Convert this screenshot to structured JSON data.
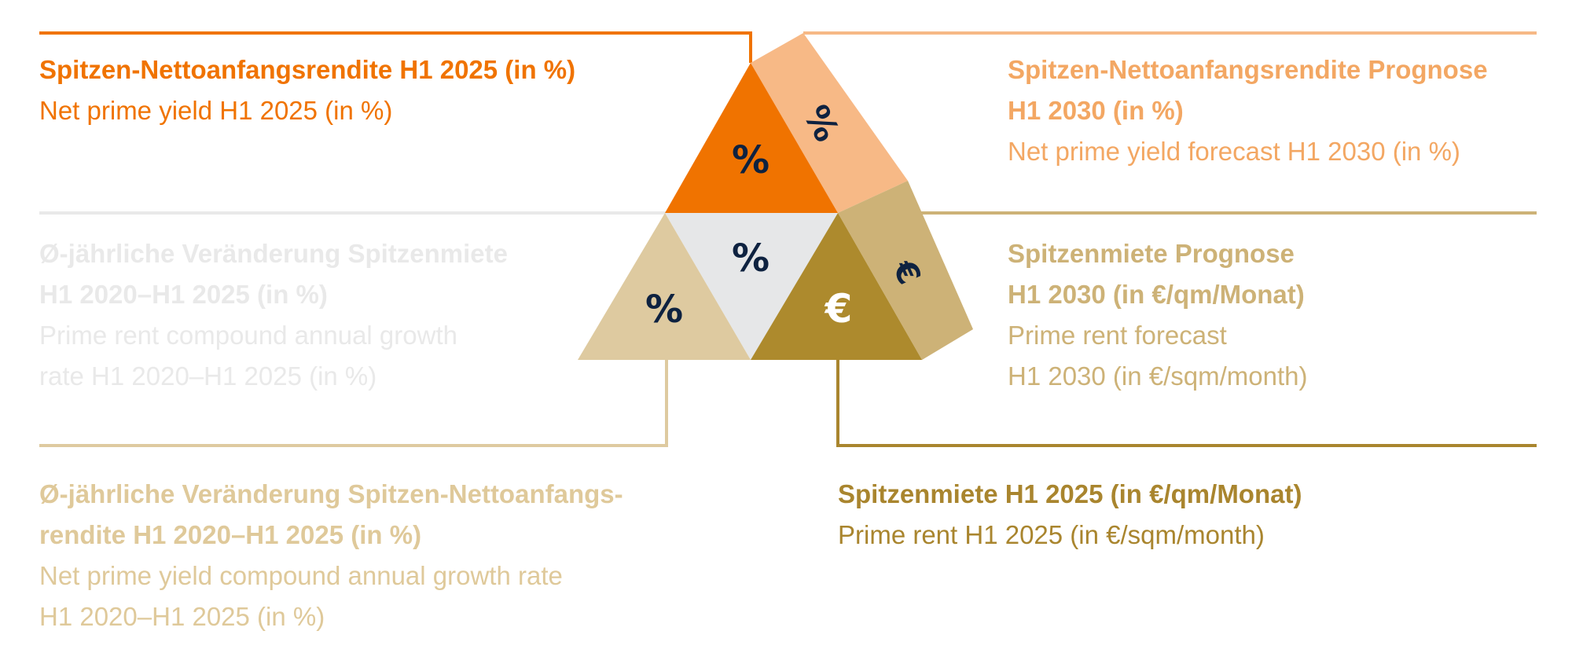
{
  "colors": {
    "orange": "#f07300",
    "peach": "#f7b986",
    "light_gold": "#decaa0",
    "grey": "#e6e7e8",
    "gold": "#ad8a2d",
    "gold_side": "#cdb277",
    "dark_gold_line": "#a9852e",
    "navy": "#0e2240",
    "faded_text": "#e9e9e9",
    "pale_gold_text": "#dfc99a",
    "light_gold_text": "#cdb277",
    "peach_text": "#f3a763"
  },
  "pyramid": {
    "top_symbol": "%",
    "top_side_symbol": "%",
    "center_symbol": "%",
    "left_symbol": "%",
    "right_symbol": "€",
    "right_side_symbol": "€"
  },
  "labels": {
    "top_left": {
      "de": [
        "Spitzen-Nettoanfangsrendite H1 2025 (in %)"
      ],
      "en": [
        "Net prime yield H1 2025 (in %)"
      ]
    },
    "top_right": {
      "de": [
        "Spitzen-Nettoanfangsrendite Prognose",
        "H1 2030 (in %)"
      ],
      "en": [
        "Net prime yield forecast H1 2030 (in %)"
      ]
    },
    "mid_left": {
      "de": [
        "Ø-jährliche Veränderung Spitzenmiete",
        "H1 2020–H1 2025 (in %)"
      ],
      "en": [
        "Prime rent compound annual growth",
        "rate H1 2020–H1 2025 (in %)"
      ]
    },
    "mid_right": {
      "de": [
        "Spitzenmiete Prognose",
        "H1 2030 (in €/qm/Monat)"
      ],
      "en": [
        "Prime rent forecast",
        "H1 2030 (in €/sqm/month)"
      ]
    },
    "bottom_left": {
      "de": [
        "Ø-jährliche Veränderung Spitzen-Nettoanfangs-",
        "rendite H1 2020–H1 2025 (in %)"
      ],
      "en": [
        "Net prime yield compound annual growth rate",
        "H1 2020–H1 2025 (in %)"
      ]
    },
    "bottom_right": {
      "de": [
        "Spitzenmiete H1 2025 (in €/qm/Monat)"
      ],
      "en": [
        "Prime rent H1 2025 (in €/sqm/month)"
      ]
    }
  }
}
